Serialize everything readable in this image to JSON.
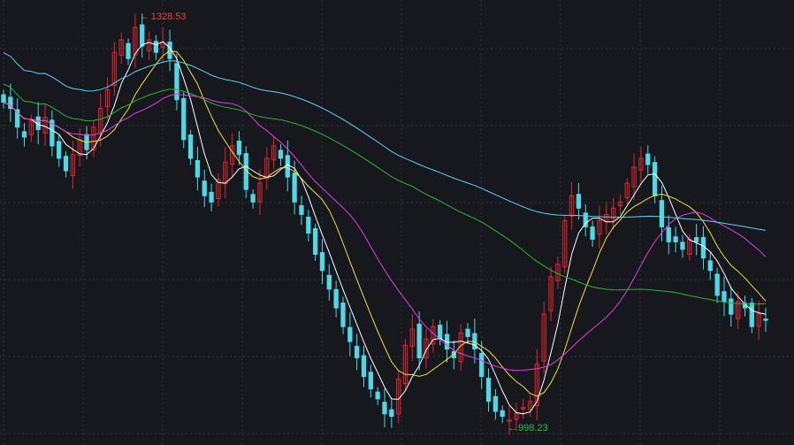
{
  "chart_data": {
    "type": "candlestick",
    "ylim": [
      985,
      1342
    ],
    "grid": true,
    "colors": {
      "background": "#16181d",
      "grid": "#2e323a",
      "up": "#e2262f",
      "down": "#4fd8e6",
      "ma5": "#ffffff",
      "ma10": "#f2e33a",
      "ma20": "#e040e0",
      "ma60": "#29b82e",
      "ma120": "#58d6ee",
      "high_annotation": "#ff3b3b",
      "low_annotation": "#2bc24a"
    },
    "annotations": {
      "high": {
        "text": "1328.53",
        "value": 1328.53
      },
      "low": {
        "text": "998.23",
        "value": 998.23
      }
    },
    "close_values": [
      1260,
      1255,
      1240,
      1232,
      1245,
      1238,
      1248,
      1225,
      1215,
      1205,
      1218,
      1230,
      1222,
      1240,
      1255,
      1270,
      1300,
      1310,
      1295,
      1320,
      1305,
      1310,
      1300,
      1308,
      1295,
      1262,
      1230,
      1215,
      1200,
      1185,
      1180,
      1198,
      1212,
      1225,
      1218,
      1190,
      1180,
      1195,
      1215,
      1225,
      1215,
      1200,
      1180,
      1170,
      1155,
      1138,
      1125,
      1110,
      1095,
      1080,
      1068,
      1055,
      1040,
      1030,
      1022,
      1010,
      1008,
      1038,
      1065,
      1078,
      1055,
      1070,
      1080,
      1070,
      1062,
      1055,
      1075,
      1072,
      1062,
      1040,
      1020,
      1012,
      1008,
      1005,
      1010,
      1015,
      1020,
      1050,
      1090,
      1120,
      1130,
      1165,
      1185,
      1175,
      1160,
      1150,
      1165,
      1170,
      1175,
      1180,
      1195,
      1208,
      1215,
      1210,
      1185,
      1160,
      1148,
      1148,
      1142,
      1150,
      1148,
      1135,
      1125,
      1105,
      1100,
      1090,
      1100,
      1095,
      1080,
      1090,
      1085
    ],
    "ma_series": [
      {
        "name": "MA5",
        "period": 5
      },
      {
        "name": "MA10",
        "period": 10
      },
      {
        "name": "MA20",
        "period": 20
      },
      {
        "name": "MA60",
        "period": 60
      },
      {
        "name": "MA120",
        "period": 120
      }
    ]
  }
}
